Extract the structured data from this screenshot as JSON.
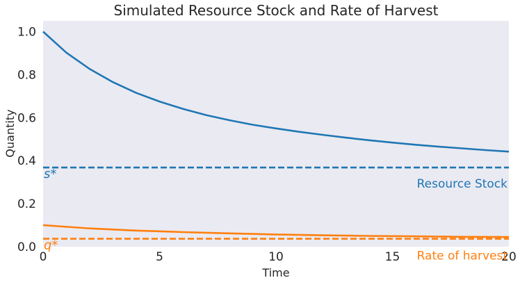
{
  "chart_data": {
    "type": "line",
    "title": "Simulated Resource Stock and Rate of Harvest",
    "xlabel": "Time",
    "ylabel": "Quantity",
    "xlim": [
      0,
      20
    ],
    "ylim": [
      0.0,
      1.05
    ],
    "xticks": [
      0,
      5,
      10,
      15,
      20
    ],
    "yticks": [
      0.0,
      0.2,
      0.4,
      0.6,
      0.8,
      1.0
    ],
    "xtick_labels": [
      "0",
      "5",
      "10",
      "15",
      "20"
    ],
    "ytick_labels": [
      "0.0",
      "0.2",
      "0.4",
      "0.6",
      "0.8",
      "1.0"
    ],
    "grid": false,
    "background": "#EAEAF2",
    "series": [
      {
        "name": "Resource Stock",
        "color": "#1f77b4",
        "style": "solid",
        "x": [
          0,
          1,
          2,
          3,
          4,
          5,
          6,
          7,
          8,
          9,
          10,
          11,
          12,
          13,
          14,
          15,
          16,
          17,
          18,
          19,
          20
        ],
        "y": [
          1.0,
          0.902,
          0.826,
          0.765,
          0.715,
          0.675,
          0.641,
          0.612,
          0.588,
          0.567,
          0.55,
          0.534,
          0.52,
          0.507,
          0.495,
          0.484,
          0.474,
          0.465,
          0.457,
          0.449,
          0.442
        ]
      },
      {
        "name": "Rate of harvest",
        "color": "#ff7f0e",
        "style": "solid",
        "x": [
          0,
          2,
          4,
          6,
          8,
          10,
          12,
          14,
          16,
          18,
          20
        ],
        "y": [
          0.1,
          0.085,
          0.075,
          0.068,
          0.062,
          0.057,
          0.053,
          0.05,
          0.048,
          0.046,
          0.045
        ]
      }
    ],
    "reference_lines": [
      {
        "label": "s*",
        "value": 0.368,
        "color": "#1f77b4",
        "style": "dashed"
      },
      {
        "label": "q*",
        "value": 0.037,
        "color": "#ff7f0e",
        "style": "dashed"
      }
    ],
    "annotations": [
      {
        "text": "Resource Stock",
        "x": 20,
        "y": 0.275,
        "color": "#1f77b4"
      },
      {
        "text": "Rate of harvest",
        "x": 20,
        "y": -0.06,
        "color": "#ff7f0e"
      }
    ]
  }
}
